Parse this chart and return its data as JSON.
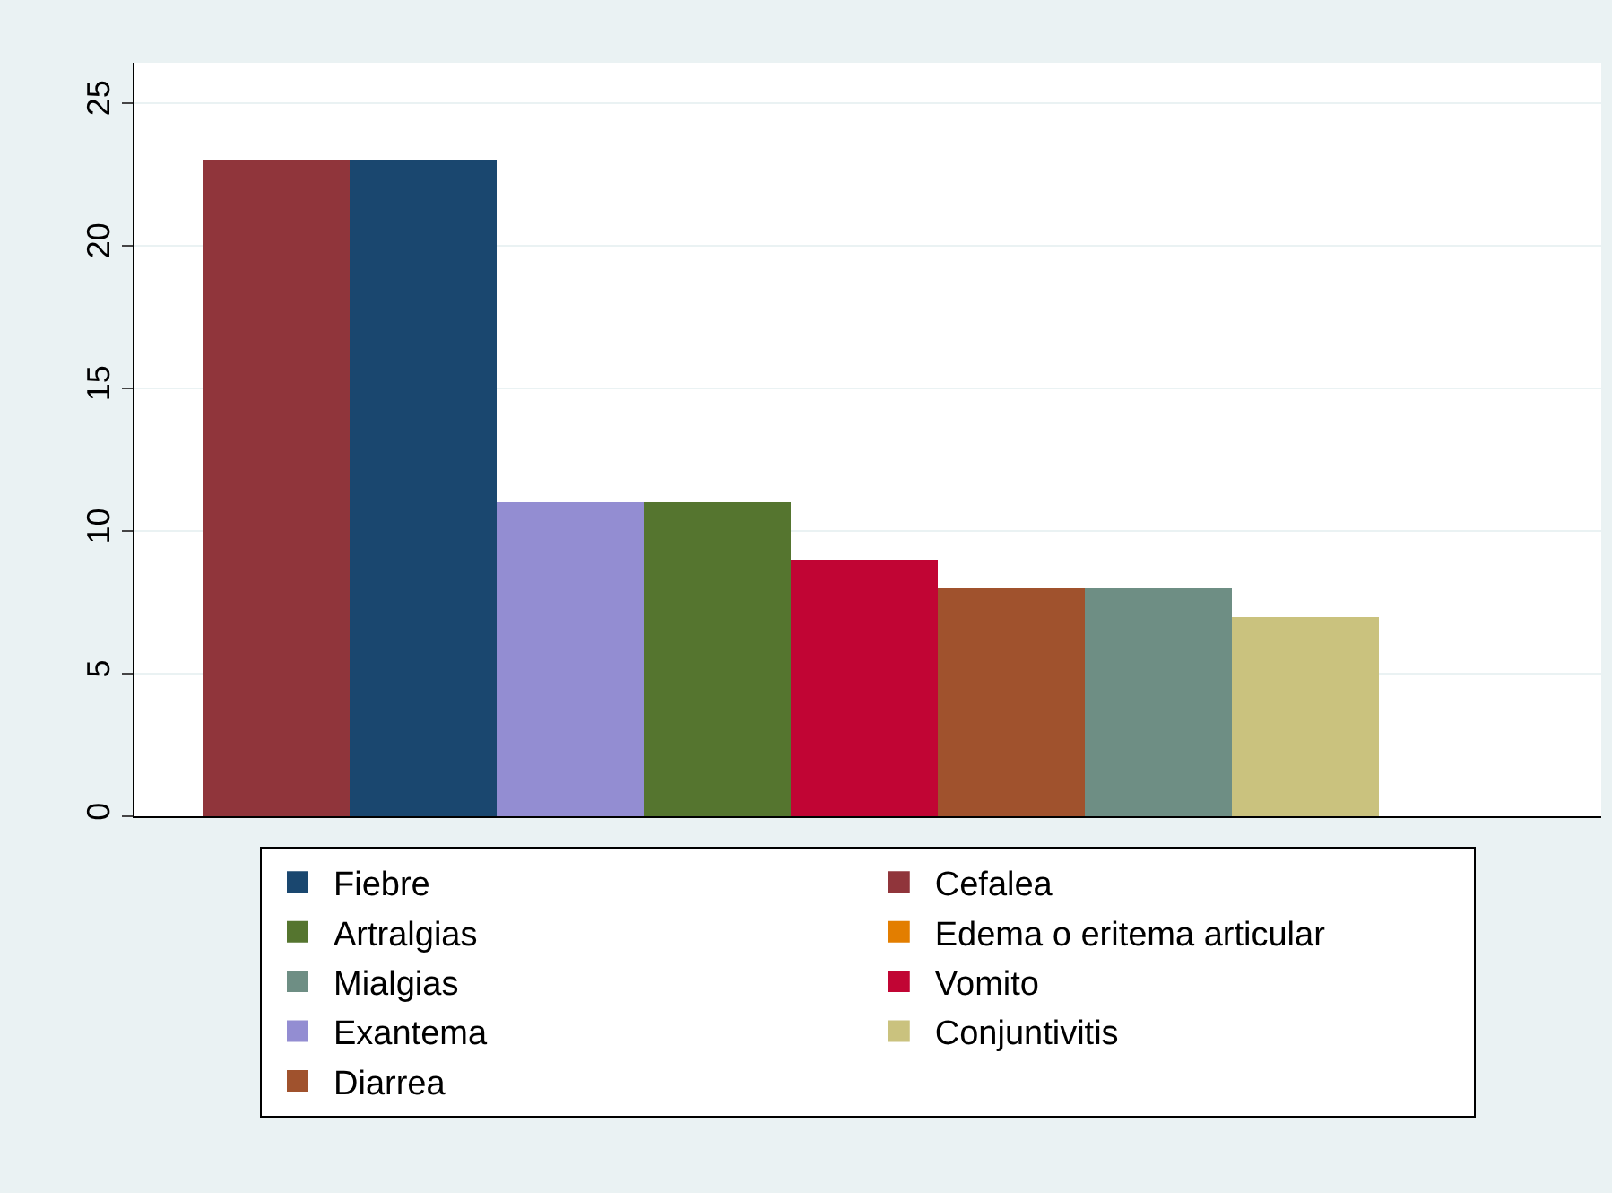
{
  "chart_data": {
    "type": "bar",
    "categories": [
      null,
      null,
      null,
      null,
      null,
      null,
      null,
      null,
      null
    ],
    "series": [
      {
        "name": "Fiebre",
        "color": "#1a476f",
        "values": [
          null,
          23,
          null,
          null,
          null,
          null,
          null,
          null,
          null
        ]
      },
      {
        "name": "Cefalea",
        "color": "#90353b",
        "values": [
          23,
          null,
          null,
          null,
          null,
          null,
          null,
          null,
          null
        ]
      },
      {
        "name": "Artralgias",
        "color": "#55752f",
        "values": [
          null,
          null,
          null,
          11,
          null,
          null,
          null,
          null,
          null
        ]
      },
      {
        "name": "Edema o eritema articular",
        "color": "#e37e00",
        "values": [
          null,
          null,
          null,
          null,
          null,
          null,
          null,
          null,
          0
        ]
      },
      {
        "name": "Mialgias",
        "color": "#6e8e84",
        "values": [
          null,
          null,
          null,
          null,
          null,
          null,
          8,
          null,
          null
        ]
      },
      {
        "name": "Vomito",
        "color": "#c10534",
        "values": [
          null,
          null,
          null,
          null,
          9,
          null,
          null,
          null,
          null
        ]
      },
      {
        "name": "Exantema",
        "color": "#938dd2",
        "values": [
          null,
          null,
          11,
          null,
          null,
          null,
          null,
          null,
          null
        ]
      },
      {
        "name": "Conjuntivitis",
        "color": "#cac27e",
        "values": [
          null,
          null,
          null,
          null,
          null,
          null,
          null,
          7,
          null
        ]
      },
      {
        "name": "Diarrea",
        "color": "#a0522d",
        "values": [
          null,
          null,
          null,
          null,
          null,
          8,
          null,
          null,
          null
        ]
      }
    ],
    "ylim": [
      0,
      26.4
    ],
    "yticks": [
      0,
      5,
      10,
      15,
      20,
      25
    ],
    "grid": "y",
    "legend": "bottom",
    "tick_labels": "y"
  }
}
